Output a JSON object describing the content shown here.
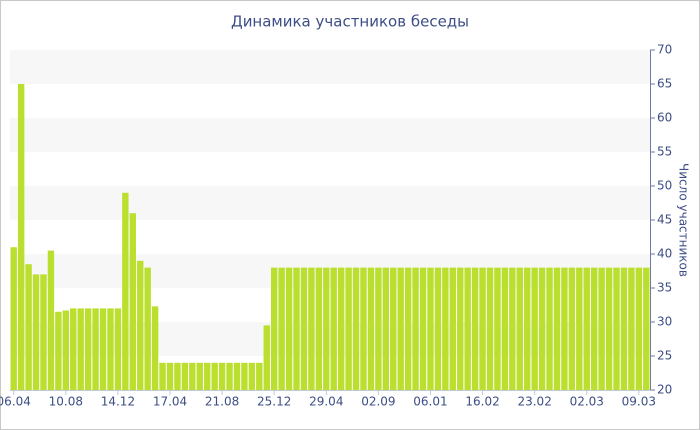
{
  "chart_data": {
    "type": "bar",
    "title": "Динамика участников беседы",
    "y_label": "Число участников",
    "categories": [
      "06.04",
      null,
      null,
      null,
      null,
      null,
      null,
      "10.08",
      null,
      null,
      null,
      null,
      null,
      null,
      "14.12",
      null,
      null,
      null,
      null,
      null,
      null,
      "17.04",
      null,
      null,
      null,
      null,
      null,
      null,
      "21.08",
      null,
      null,
      null,
      null,
      null,
      null,
      "25.12",
      null,
      null,
      null,
      null,
      null,
      null,
      "29.04",
      null,
      null,
      null,
      null,
      null,
      null,
      "02.09",
      null,
      null,
      null,
      null,
      null,
      null,
      "06.01",
      null,
      null,
      null,
      null,
      null,
      null,
      "16.02",
      null,
      null,
      null,
      null,
      null,
      null,
      "23.02",
      null,
      null,
      null,
      null,
      null,
      null,
      "02.03",
      null,
      null,
      null,
      null,
      null,
      null,
      "09.03",
      null
    ],
    "values": [
      41,
      65,
      38.5,
      37,
      37,
      40.5,
      31.5,
      31.7,
      32,
      32,
      32,
      32,
      32,
      32,
      32,
      49,
      46,
      39,
      38,
      32.3,
      24,
      24,
      24,
      24,
      24,
      24,
      24,
      24,
      24,
      24,
      24,
      24,
      24,
      24,
      29.5,
      38,
      38,
      38,
      38,
      38,
      38,
      38,
      38,
      38,
      38,
      38,
      38,
      38,
      38,
      38,
      38,
      38,
      38,
      38,
      38,
      38,
      38,
      38,
      38,
      38,
      38,
      38,
      38,
      38,
      38,
      38,
      38,
      38,
      38,
      38,
      38,
      38,
      38,
      38,
      38,
      38,
      38,
      38,
      38,
      38,
      38,
      38,
      38,
      38,
      38,
      38
    ],
    "color": "#bbdf2e",
    "ylim": [
      20,
      70
    ],
    "yticks": [
      20,
      25,
      30,
      35,
      40,
      45,
      50,
      55,
      60,
      65,
      70
    ],
    "grid": "bands",
    "y_axis_side": "right"
  }
}
